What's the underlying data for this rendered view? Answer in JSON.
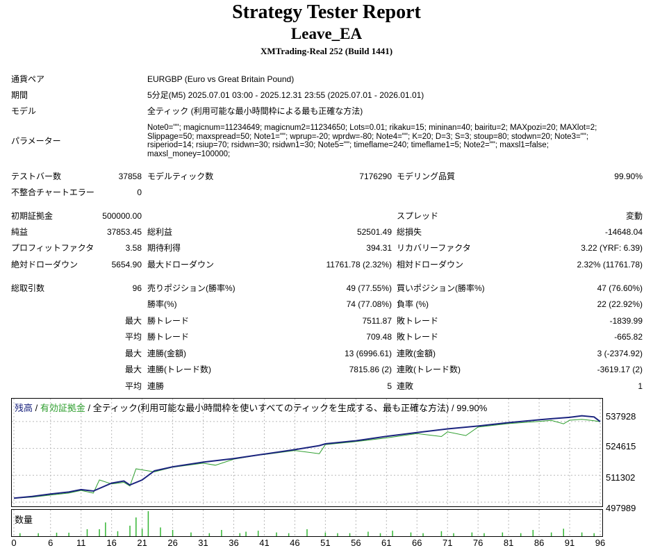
{
  "header": {
    "title": "Strategy Tester Report",
    "ea_name": "Leave_EA",
    "server": "XMTrading-Real 252 (Build 1441)"
  },
  "info": {
    "symbol_label": "通貨ペア",
    "symbol_value": "EURGBP (Euro vs Great Britain Pound)",
    "period_label": "期間",
    "period_value": "5分足(M5) 2025.07.01 03:00 - 2025.12.31 23:55 (2025.07.01 - 2026.01.01)",
    "model_label": "モデル",
    "model_value": "全ティック (利用可能な最小時間枠による最も正確な方法)",
    "params_label": "パラメーター",
    "params_value": "Note0=\"\"; magicnum=11234649; magicnum2=11234650; Lots=0.01; rikaku=15; mininan=40; bairitu=2; MAXpozi=20; MAXlot=2; Slippage=50; maxspread=50; Note1=\"\"; wprup=-20; wprdw=-80; Note4=\"\"; K=20; D=3; S=3; stoup=80; stodwn=20; Note3=\"\"; rsiperiod=14; rsiup=70; rsidwn=30; rsidwn1=30; Note5=\"\"; timeflame=240; timeflame1=5; Note2=\"\"; maxsl1=false; maxsl_money=100000;"
  },
  "stats": {
    "bars_label": "テストバー数",
    "bars_value": "37858",
    "ticks_label": "モデルティック数",
    "ticks_value": "7176290",
    "quality_label": "モデリング品質",
    "quality_value": "99.90%",
    "mismatch_label": "不整合チャートエラー",
    "mismatch_value": "0",
    "deposit_label": "初期証拠金",
    "deposit_value": "500000.00",
    "spread_label": "スプレッド",
    "spread_value": "変動",
    "net_label": "純益",
    "net_value": "37853.45",
    "gross_profit_label": "総利益",
    "gross_profit_value": "52501.49",
    "gross_loss_label": "総損失",
    "gross_loss_value": "-14648.04",
    "pf_label": "プロフィットファクタ",
    "pf_value": "3.58",
    "expected_label": "期待利得",
    "expected_value": "394.31",
    "recovery_label": "リカバリーファクタ",
    "recovery_value": "3.22 (YRF: 6.39)",
    "abs_dd_label": "絶対ドローダウン",
    "abs_dd_value": "5654.90",
    "max_dd_label": "最大ドローダウン",
    "max_dd_value": "11761.78 (2.32%)",
    "rel_dd_label": "相対ドローダウン",
    "rel_dd_value": "2.32% (11761.78)",
    "trades_label": "総取引数",
    "trades_value": "96",
    "short_label": "売りポジション(勝率%)",
    "short_value": "49 (77.55%)",
    "long_label": "買いポジション(勝率%)",
    "long_value": "47 (76.60%)",
    "winrate_label": "勝率(%)",
    "winrate_value": "74 (77.08%)",
    "lossrate_label": "負率 (%)",
    "lossrate_value": "22 (22.92%)",
    "max1": "最大",
    "largest_win_label": "勝トレード",
    "largest_win_value": "7511.87",
    "largest_loss_label": "敗トレード",
    "largest_loss_value": "-1839.99",
    "avg1": "平均",
    "avg_win_label": "勝トレード",
    "avg_win_value": "709.48",
    "avg_loss_label": "敗トレード",
    "avg_loss_value": "-665.82",
    "max2": "最大",
    "cons_wins_money_label": "連勝(金額)",
    "cons_wins_money_value": "13 (6996.61)",
    "cons_loss_money_label": "連敗(金額)",
    "cons_loss_money_value": "3 (-2374.92)",
    "max3": "最大",
    "cons_wins_trades_label": "連勝(トレード数)",
    "cons_wins_trades_value": "7815.86 (2)",
    "cons_loss_trades_label": "連敗(トレード数)",
    "cons_loss_trades_value": "-3619.17 (2)",
    "avg2": "平均",
    "avg_cons_wins_label": "連勝",
    "avg_cons_wins_value": "5",
    "avg_cons_loss_label": "連敗",
    "avg_cons_loss_value": "1"
  },
  "chart_legend": {
    "balance": "残高",
    "sep1": " / ",
    "equity": "有効証拠金",
    "sep2": " / ",
    "rest": "全ティック(利用可能な最小時間枠を使いすべてのティックを生成する、最も正確な方法) / 99.90%"
  },
  "volume_label": "数量",
  "colors": {
    "balance": "#1a237e",
    "equity": "#2e9e2e",
    "grid": "#b8b8b8",
    "volume": "#33b533"
  },
  "chart_data": {
    "type": "line",
    "ylim": [
      497989,
      541000
    ],
    "y_ticks": [
      "537928",
      "524615",
      "511302",
      "497989"
    ],
    "x_ticks": [
      "0",
      "6",
      "11",
      "16",
      "21",
      "26",
      "31",
      "36",
      "41",
      "46",
      "51",
      "56",
      "61",
      "66",
      "71",
      "76",
      "81",
      "86",
      "91",
      "96"
    ],
    "series": [
      {
        "name": "残高",
        "x": [
          0,
          3,
          6,
          9,
          11,
          13,
          16,
          18,
          19,
          21,
          23,
          26,
          31,
          36,
          41,
          46,
          50,
          51,
          56,
          61,
          66,
          71,
          76,
          81,
          86,
          88,
          91,
          93,
          95,
          96
        ],
        "values": [
          500000,
          500800,
          502000,
          503000,
          504200,
          503500,
          507400,
          508500,
          506500,
          509000,
          513500,
          515500,
          517800,
          519600,
          521800,
          524000,
          526000,
          526900,
          528400,
          530600,
          532500,
          534300,
          535700,
          537400,
          538800,
          539300,
          540000,
          540800,
          540200,
          537853
        ]
      },
      {
        "name": "有効証拠金",
        "x": [
          0,
          3,
          6,
          9,
          11,
          13,
          14,
          16,
          18,
          19,
          20,
          21,
          23,
          26,
          31,
          33,
          36,
          40,
          41,
          46,
          50,
          51,
          56,
          61,
          66,
          70,
          71,
          74,
          76,
          81,
          86,
          88,
          90,
          91,
          93,
          95,
          96
        ],
        "values": [
          500000,
          500500,
          501500,
          502500,
          503800,
          502500,
          509000,
          507000,
          507800,
          506000,
          514500,
          514000,
          513000,
          515300,
          517300,
          516300,
          519300,
          521300,
          521600,
          523600,
          522000,
          526500,
          528000,
          529800,
          532000,
          530500,
          532800,
          531000,
          535200,
          536900,
          538000,
          538500,
          536800,
          538600,
          539000,
          538300,
          537853
        ]
      }
    ],
    "volume": {
      "x": [
        1,
        4,
        7,
        9,
        12,
        14,
        15,
        17,
        19,
        20,
        21,
        22,
        24,
        26,
        29,
        32,
        34,
        37,
        38,
        40,
        43,
        45,
        48,
        51,
        53,
        55,
        58,
        60,
        62,
        65,
        67,
        70,
        72,
        75,
        77,
        80,
        83,
        85,
        88,
        90,
        93,
        95
      ],
      "values": [
        0.12,
        0.12,
        0.14,
        0.14,
        0.28,
        0.28,
        0.55,
        0.2,
        0.42,
        0.75,
        0.3,
        1.0,
        0.35,
        0.25,
        0.15,
        0.12,
        0.25,
        0.12,
        0.18,
        0.22,
        0.15,
        0.12,
        0.28,
        0.15,
        0.12,
        0.12,
        0.18,
        0.12,
        0.22,
        0.15,
        0.12,
        0.2,
        0.12,
        0.15,
        0.12,
        0.15,
        0.12,
        0.25,
        0.15,
        0.3,
        0.15,
        0.12
      ]
    }
  }
}
